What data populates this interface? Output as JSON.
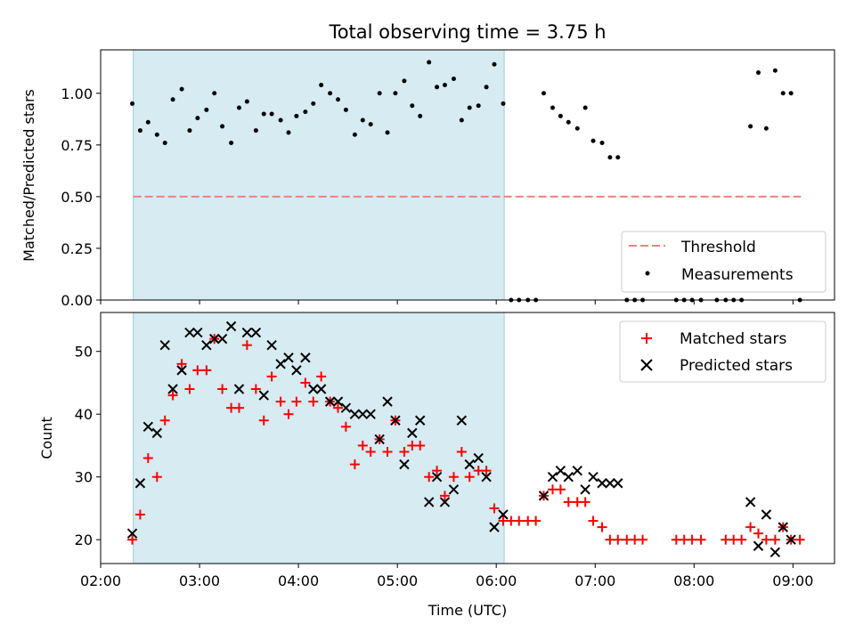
{
  "figure": {
    "title": "Total observing time = 3.75 h",
    "shaded_region": {
      "start_hours": 2.33,
      "end_hours": 6.08,
      "color": "#add8e6"
    }
  },
  "x_axis": {
    "label": "Time (UTC)",
    "range_hours": [
      2.0,
      9.42
    ],
    "ticks": [
      {
        "value": 2,
        "label": "02:00"
      },
      {
        "value": 3,
        "label": "03:00"
      },
      {
        "value": 4,
        "label": "04:00"
      },
      {
        "value": 5,
        "label": "05:00"
      },
      {
        "value": 6,
        "label": "06:00"
      },
      {
        "value": 7,
        "label": "07:00"
      },
      {
        "value": 8,
        "label": "08:00"
      },
      {
        "value": 9,
        "label": "09:00"
      }
    ]
  },
  "chart_data": [
    {
      "type": "scatter",
      "panel": "top",
      "ylabel": "Matched/Predicted stars",
      "ylim": [
        0.0,
        1.21
      ],
      "yticks": [
        {
          "value": 0.0,
          "label": "0.00"
        },
        {
          "value": 0.25,
          "label": "0.25"
        },
        {
          "value": 0.5,
          "label": "0.50"
        },
        {
          "value": 0.75,
          "label": "0.75"
        },
        {
          "value": 1.0,
          "label": "1.00"
        }
      ],
      "threshold": {
        "name": "Threshold",
        "value": 0.5,
        "x_range": [
          2.33,
          9.08
        ],
        "color": "#f08080"
      },
      "legend": {
        "placement": "lower-right",
        "entries": [
          "Threshold",
          "Measurements"
        ]
      },
      "series": [
        {
          "name": "Measurements",
          "color": "#000000",
          "points": [
            [
              2.32,
              0.95
            ],
            [
              2.4,
              0.82
            ],
            [
              2.48,
              0.86
            ],
            [
              2.57,
              0.8
            ],
            [
              2.65,
              0.76
            ],
            [
              2.73,
              0.97
            ],
            [
              2.82,
              1.02
            ],
            [
              2.9,
              0.82
            ],
            [
              2.98,
              0.88
            ],
            [
              3.07,
              0.92
            ],
            [
              3.15,
              1.0
            ],
            [
              3.23,
              0.84
            ],
            [
              3.32,
              0.76
            ],
            [
              3.4,
              0.93
            ],
            [
              3.48,
              0.96
            ],
            [
              3.57,
              0.82
            ],
            [
              3.65,
              0.9
            ],
            [
              3.73,
              0.9
            ],
            [
              3.82,
              0.87
            ],
            [
              3.9,
              0.81
            ],
            [
              3.98,
              0.89
            ],
            [
              4.07,
              0.91
            ],
            [
              4.15,
              0.95
            ],
            [
              4.23,
              1.04
            ],
            [
              4.32,
              1.0
            ],
            [
              4.4,
              0.97
            ],
            [
              4.48,
              0.92
            ],
            [
              4.57,
              0.8
            ],
            [
              4.65,
              0.87
            ],
            [
              4.73,
              0.85
            ],
            [
              4.82,
              1.0
            ],
            [
              4.9,
              0.81
            ],
            [
              4.98,
              1.0
            ],
            [
              5.07,
              1.06
            ],
            [
              5.15,
              0.94
            ],
            [
              5.23,
              0.89
            ],
            [
              5.32,
              1.15
            ],
            [
              5.4,
              1.03
            ],
            [
              5.48,
              1.04
            ],
            [
              5.57,
              1.07
            ],
            [
              5.65,
              0.87
            ],
            [
              5.73,
              0.93
            ],
            [
              5.82,
              0.94
            ],
            [
              5.9,
              1.03
            ],
            [
              5.98,
              1.14
            ],
            [
              6.07,
              0.95
            ],
            [
              6.15,
              0.0
            ],
            [
              6.23,
              0.0
            ],
            [
              6.32,
              0.0
            ],
            [
              6.4,
              0.0
            ],
            [
              6.48,
              1.0
            ],
            [
              6.57,
              0.93
            ],
            [
              6.65,
              0.89
            ],
            [
              6.73,
              0.86
            ],
            [
              6.82,
              0.83
            ],
            [
              6.9,
              0.93
            ],
            [
              6.98,
              0.77
            ],
            [
              7.07,
              0.76
            ],
            [
              7.15,
              0.69
            ],
            [
              7.23,
              0.69
            ],
            [
              7.32,
              0.0
            ],
            [
              7.4,
              0.0
            ],
            [
              7.48,
              0.0
            ],
            [
              7.82,
              0.0
            ],
            [
              7.9,
              0.0
            ],
            [
              7.98,
              0.0
            ],
            [
              8.07,
              0.0
            ],
            [
              8.23,
              0.0
            ],
            [
              8.32,
              0.0
            ],
            [
              8.4,
              0.0
            ],
            [
              8.48,
              0.0
            ],
            [
              8.57,
              0.84
            ],
            [
              8.65,
              1.1
            ],
            [
              8.73,
              0.83
            ],
            [
              8.82,
              1.11
            ],
            [
              8.9,
              1.0
            ],
            [
              8.98,
              1.0
            ],
            [
              9.07,
              0.0
            ]
          ]
        }
      ]
    },
    {
      "type": "scatter",
      "panel": "bottom",
      "ylabel": "Count",
      "ylim": [
        16.2,
        56.2
      ],
      "yticks": [
        {
          "value": 20,
          "label": "20"
        },
        {
          "value": 30,
          "label": "30"
        },
        {
          "value": 40,
          "label": "40"
        },
        {
          "value": 50,
          "label": "50"
        }
      ],
      "legend": {
        "placement": "upper-right",
        "entries": [
          "Matched stars",
          "Predicted stars"
        ]
      },
      "series": [
        {
          "name": "Matched stars",
          "marker": "plus",
          "color": "#ff0000",
          "points": [
            [
              2.32,
              20
            ],
            [
              2.4,
              24
            ],
            [
              2.48,
              33
            ],
            [
              2.57,
              30
            ],
            [
              2.65,
              39
            ],
            [
              2.73,
              43
            ],
            [
              2.82,
              48
            ],
            [
              2.9,
              44
            ],
            [
              2.98,
              47
            ],
            [
              3.07,
              47
            ],
            [
              3.15,
              52
            ],
            [
              3.23,
              44
            ],
            [
              3.32,
              41
            ],
            [
              3.4,
              41
            ],
            [
              3.48,
              51
            ],
            [
              3.57,
              44
            ],
            [
              3.65,
              39
            ],
            [
              3.73,
              46
            ],
            [
              3.82,
              42
            ],
            [
              3.9,
              40
            ],
            [
              3.98,
              42
            ],
            [
              4.07,
              45
            ],
            [
              4.15,
              42
            ],
            [
              4.23,
              46
            ],
            [
              4.32,
              42
            ],
            [
              4.4,
              41
            ],
            [
              4.48,
              38
            ],
            [
              4.57,
              32
            ],
            [
              4.65,
              35
            ],
            [
              4.73,
              34
            ],
            [
              4.82,
              36
            ],
            [
              4.9,
              34
            ],
            [
              4.98,
              39
            ],
            [
              5.07,
              34
            ],
            [
              5.15,
              35
            ],
            [
              5.23,
              35
            ],
            [
              5.32,
              30
            ],
            [
              5.4,
              31
            ],
            [
              5.48,
              27
            ],
            [
              5.57,
              30
            ],
            [
              5.65,
              34
            ],
            [
              5.73,
              30
            ],
            [
              5.82,
              31
            ],
            [
              5.9,
              31
            ],
            [
              5.98,
              25
            ],
            [
              6.07,
              23
            ],
            [
              6.15,
              23
            ],
            [
              6.23,
              23
            ],
            [
              6.32,
              23
            ],
            [
              6.4,
              23
            ],
            [
              6.48,
              27
            ],
            [
              6.57,
              28
            ],
            [
              6.65,
              28
            ],
            [
              6.73,
              26
            ],
            [
              6.82,
              26
            ],
            [
              6.9,
              26
            ],
            [
              6.98,
              23
            ],
            [
              7.07,
              22
            ],
            [
              7.15,
              20
            ],
            [
              7.23,
              20
            ],
            [
              7.32,
              20
            ],
            [
              7.4,
              20
            ],
            [
              7.48,
              20
            ],
            [
              7.82,
              20
            ],
            [
              7.9,
              20
            ],
            [
              7.98,
              20
            ],
            [
              8.07,
              20
            ],
            [
              8.32,
              20
            ],
            [
              8.4,
              20
            ],
            [
              8.48,
              20
            ],
            [
              8.57,
              22
            ],
            [
              8.65,
              21
            ],
            [
              8.73,
              20
            ],
            [
              8.82,
              20
            ],
            [
              8.9,
              22
            ],
            [
              8.98,
              20
            ],
            [
              9.07,
              20
            ]
          ]
        },
        {
          "name": "Predicted stars",
          "marker": "x",
          "color": "#000000",
          "points": [
            [
              2.32,
              21
            ],
            [
              2.4,
              29
            ],
            [
              2.48,
              38
            ],
            [
              2.57,
              37
            ],
            [
              2.65,
              51
            ],
            [
              2.73,
              44
            ],
            [
              2.82,
              47
            ],
            [
              2.9,
              53
            ],
            [
              2.98,
              53
            ],
            [
              3.07,
              51
            ],
            [
              3.15,
              52
            ],
            [
              3.23,
              52
            ],
            [
              3.32,
              54
            ],
            [
              3.4,
              44
            ],
            [
              3.48,
              53
            ],
            [
              3.57,
              53
            ],
            [
              3.65,
              43
            ],
            [
              3.73,
              51
            ],
            [
              3.82,
              48
            ],
            [
              3.9,
              49
            ],
            [
              3.98,
              47
            ],
            [
              4.07,
              49
            ],
            [
              4.15,
              44
            ],
            [
              4.23,
              44
            ],
            [
              4.32,
              42
            ],
            [
              4.4,
              42
            ],
            [
              4.48,
              41
            ],
            [
              4.57,
              40
            ],
            [
              4.65,
              40
            ],
            [
              4.73,
              40
            ],
            [
              4.82,
              36
            ],
            [
              4.9,
              42
            ],
            [
              4.98,
              39
            ],
            [
              5.07,
              32
            ],
            [
              5.15,
              37
            ],
            [
              5.23,
              39
            ],
            [
              5.32,
              26
            ],
            [
              5.4,
              30
            ],
            [
              5.48,
              26
            ],
            [
              5.57,
              28
            ],
            [
              5.65,
              39
            ],
            [
              5.73,
              32
            ],
            [
              5.82,
              33
            ],
            [
              5.9,
              30
            ],
            [
              5.98,
              22
            ],
            [
              6.07,
              24
            ],
            [
              6.48,
              27
            ],
            [
              6.57,
              30
            ],
            [
              6.65,
              31
            ],
            [
              6.73,
              30
            ],
            [
              6.82,
              31
            ],
            [
              6.9,
              28
            ],
            [
              6.98,
              30
            ],
            [
              7.07,
              29
            ],
            [
              7.15,
              29
            ],
            [
              7.23,
              29
            ],
            [
              8.57,
              26
            ],
            [
              8.65,
              19
            ],
            [
              8.73,
              24
            ],
            [
              8.82,
              18
            ],
            [
              8.9,
              22
            ],
            [
              8.98,
              20
            ]
          ]
        }
      ]
    }
  ]
}
